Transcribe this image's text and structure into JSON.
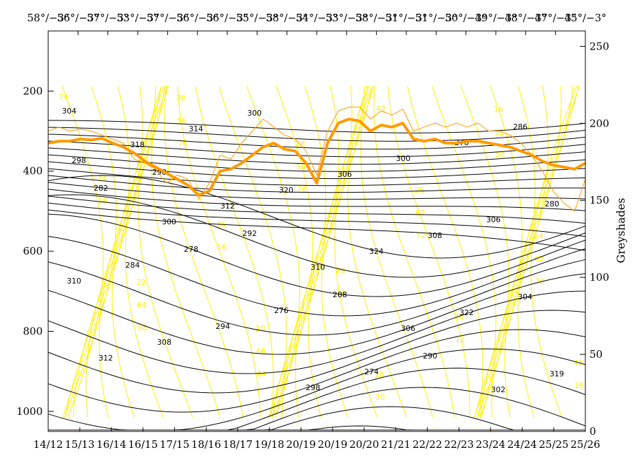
{
  "chart_data": {
    "type": "line",
    "title": "",
    "ylabel_right": "Greyshades",
    "x_ticks": [
      "14/12",
      "15/13",
      "16/14",
      "16/15",
      "17/15",
      "18/16",
      "18/17",
      "19/18",
      "20/19",
      "20/19",
      "20/20",
      "21/21",
      "22/22",
      "22/23",
      "23/24",
      "24/24",
      "25/25",
      "25/26"
    ],
    "x_ticks_top": [
      "58°/−3°",
      "56°/−3°",
      "57°/−3°",
      "53°/−3°",
      "57°/−3°",
      "56°/−3°",
      "56°/−3°",
      "55°/−3°",
      "58°/−3°",
      "54°/−3°",
      "53°/−3°",
      "58°/−3°",
      "51°/−3°",
      "51°/−3°",
      "50°/−3°",
      "49°/−3°",
      "48°/−3°",
      "47°/−3°",
      "45°/−3°"
    ],
    "y_left_ticks": [
      200,
      400,
      600,
      800,
      1000
    ],
    "ylim_left": [
      1050,
      50
    ],
    "y_right_ticks": [
      0,
      50,
      100,
      150,
      200,
      250
    ],
    "ylim_right": [
      0,
      260
    ],
    "colors": {
      "black_contours": "#000000",
      "yellow_contours": "#ffee00",
      "thick_line": "#ff9900",
      "thin_line": "#ff9900"
    },
    "black_contour_labels": [
      "304",
      "298",
      "292",
      "288",
      "290",
      "286",
      "282",
      "278",
      "276",
      "274",
      "278",
      "280",
      "284",
      "294",
      "298",
      "300",
      "306",
      "310",
      "308",
      "300",
      "306",
      "308",
      "304",
      "312",
      "314",
      "320",
      "324",
      "322",
      "319",
      "318",
      "312",
      "310",
      "306",
      "302",
      "298",
      "300"
    ],
    "yellow_contour_labels": [
      "74",
      "76",
      "78",
      "72",
      "70",
      "68",
      "44",
      "42",
      "20",
      "18",
      "16",
      "14",
      "12",
      "10",
      "56",
      "58",
      "60",
      "62",
      "64",
      "66",
      "30",
      "32",
      "34",
      "36",
      "38",
      "40",
      "42",
      "30",
      "28",
      "26",
      "24",
      "22",
      "20",
      "18",
      "16"
    ],
    "series": [
      {
        "name": "",
        "style": "thick",
        "x_frac": [
          0,
          0.02,
          0.04,
          0.06,
          0.08,
          0.1,
          0.12,
          0.14,
          0.16,
          0.18,
          0.2,
          0.22,
          0.24,
          0.26,
          0.28,
          0.3,
          0.32,
          0.34,
          0.36,
          0.38,
          0.4,
          0.42,
          0.44,
          0.46,
          0.48,
          0.5,
          0.52,
          0.54,
          0.56,
          0.58,
          0.6,
          0.62,
          0.64,
          0.66,
          0.68,
          0.7,
          0.72,
          0.74,
          0.76,
          0.78,
          0.8,
          0.82,
          0.84,
          0.86,
          0.88,
          0.9,
          0.92,
          0.94,
          0.96,
          0.98,
          1.0
        ],
        "y_pressure": [
          330,
          325,
          325,
          320,
          322,
          318,
          330,
          340,
          355,
          375,
          390,
          405,
          420,
          435,
          460,
          450,
          400,
          395,
          380,
          360,
          340,
          330,
          345,
          350,
          380,
          430,
          330,
          280,
          270,
          275,
          300,
          285,
          290,
          280,
          320,
          325,
          320,
          330,
          330,
          325,
          325,
          330,
          335,
          340,
          350,
          360,
          375,
          385,
          390,
          395,
          380
        ]
      },
      {
        "name": "",
        "style": "thin",
        "x_frac": [
          0,
          0.02,
          0.04,
          0.06,
          0.08,
          0.1,
          0.12,
          0.14,
          0.16,
          0.18,
          0.2,
          0.22,
          0.24,
          0.26,
          0.28,
          0.3,
          0.32,
          0.34,
          0.36,
          0.38,
          0.4,
          0.42,
          0.44,
          0.46,
          0.48,
          0.5,
          0.52,
          0.54,
          0.56,
          0.58,
          0.6,
          0.62,
          0.64,
          0.66,
          0.68,
          0.7,
          0.72,
          0.74,
          0.76,
          0.78,
          0.8,
          0.82,
          0.84,
          0.86,
          0.88,
          0.9,
          0.92,
          0.94,
          0.96,
          0.98,
          1.0
        ],
        "y_pressure": [
          300,
          290,
          300,
          295,
          300,
          310,
          320,
          330,
          370,
          380,
          395,
          430,
          410,
          420,
          470,
          430,
          360,
          370,
          330,
          300,
          270,
          290,
          310,
          320,
          350,
          410,
          300,
          250,
          240,
          240,
          270,
          250,
          260,
          245,
          300,
          290,
          280,
          290,
          280,
          290,
          280,
          300,
          300,
          310,
          330,
          360,
          400,
          450,
          480,
          500,
          420
        ]
      }
    ]
  }
}
